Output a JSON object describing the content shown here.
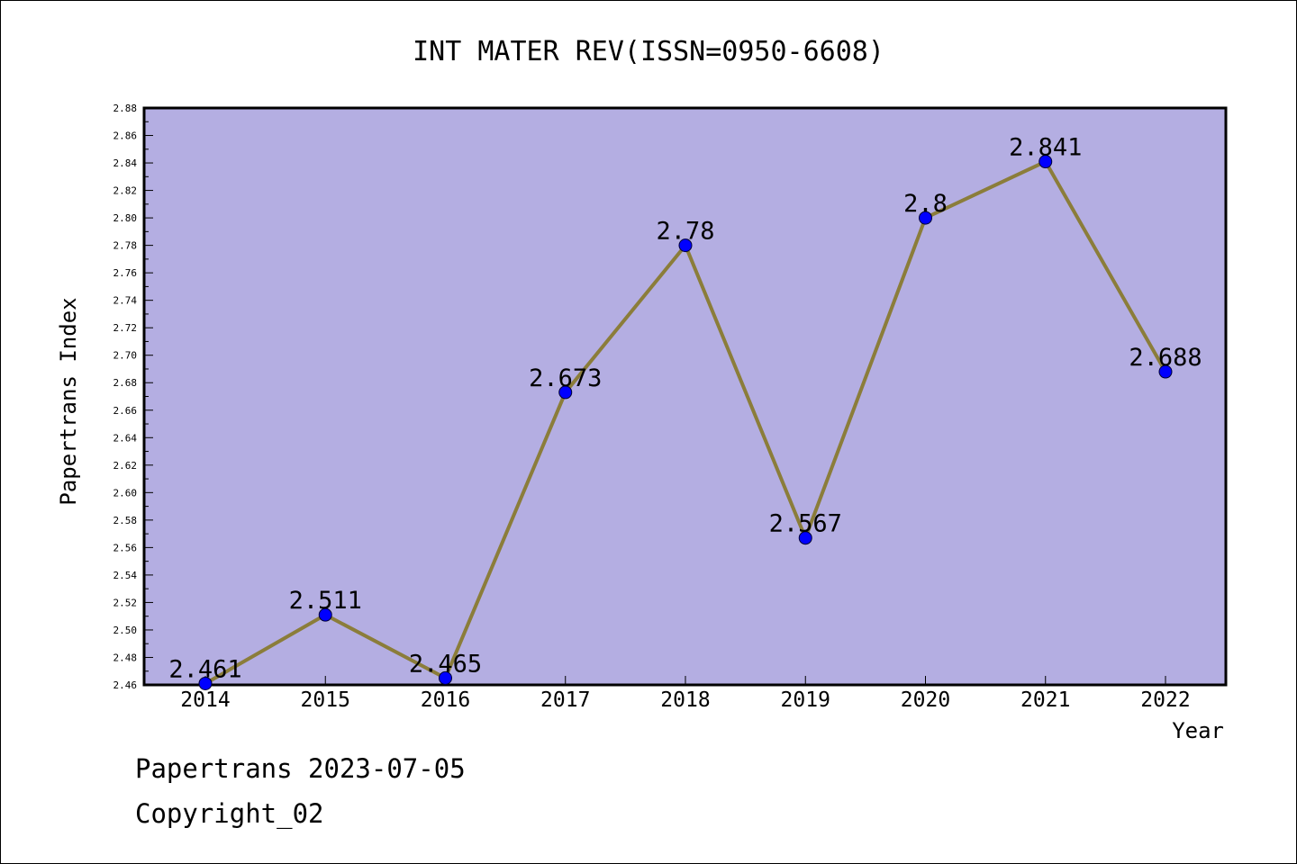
{
  "chart_data": {
    "type": "line",
    "title": "INT MATER REV(ISSN=0950-6608)",
    "xlabel": "Year",
    "ylabel": "Papertrans Index",
    "categories": [
      "2014",
      "2015",
      "2016",
      "2017",
      "2018",
      "2019",
      "2020",
      "2021",
      "2022"
    ],
    "values": [
      2.461,
      2.511,
      2.465,
      2.673,
      2.78,
      2.567,
      2.8,
      2.841,
      2.688
    ],
    "data_labels": [
      "2.461",
      "2.511",
      "2.465",
      "2.673",
      "2.78",
      "2.567",
      "2.8",
      "2.841",
      "2.688"
    ],
    "ylim": [
      2.46,
      2.88
    ],
    "yticks": [
      "2.46",
      "2.48",
      "2.50",
      "2.52",
      "2.54",
      "2.56",
      "2.58",
      "2.60",
      "2.62",
      "2.64",
      "2.66",
      "2.68",
      "2.70",
      "2.72",
      "2.74",
      "2.76",
      "2.78",
      "2.80",
      "2.82",
      "2.84",
      "2.86",
      "2.88"
    ],
    "grid": false,
    "colors": {
      "plot_background": "#b4aee2",
      "line": "#8b7d3a",
      "marker": "#0000ff"
    }
  },
  "footer": {
    "line1": "Papertrans 2023-07-05",
    "line2": "Copyright_02"
  }
}
